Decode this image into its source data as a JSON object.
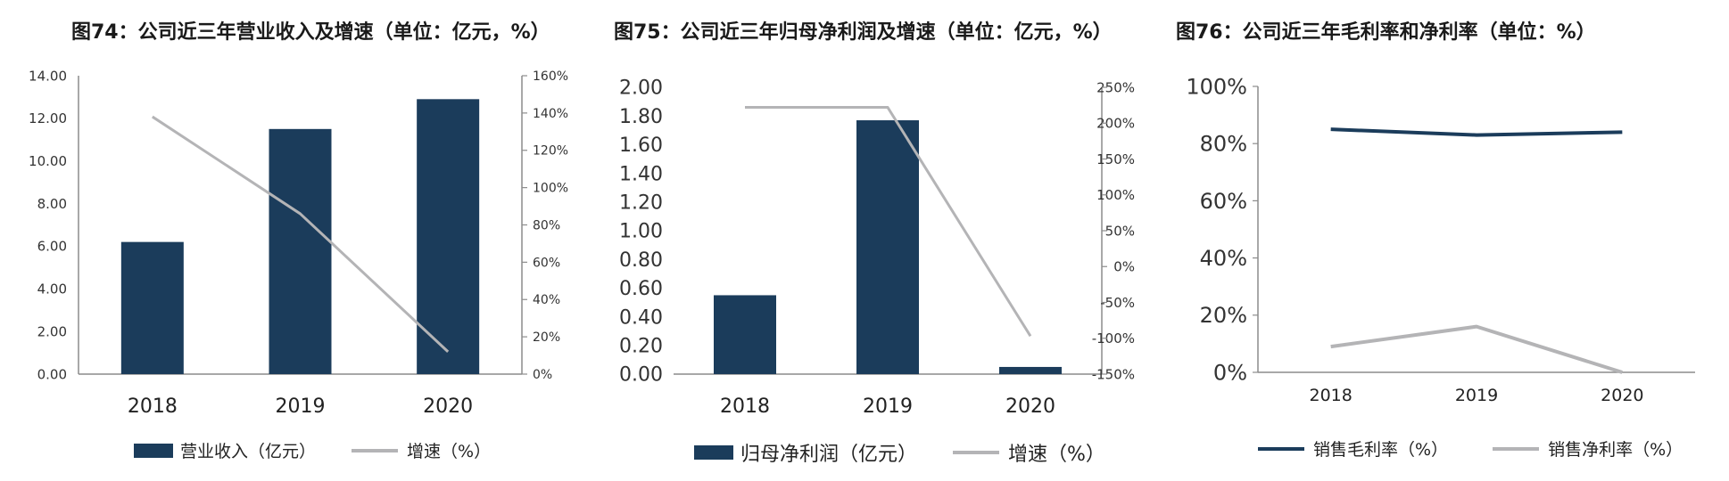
{
  "colors": {
    "bar": "#1b3c5b",
    "growth_line": "#b4b4b6",
    "gross_margin_line": "#1b3c5b",
    "net_margin_line": "#b4b4b6",
    "axis": "#8c8c8c"
  },
  "panels": [
    {
      "title": "图74：公司近三年营业收入及增速（单位：亿元，%）",
      "legend": {
        "bar": "营业收入（亿元）",
        "line": "增速（%）"
      }
    },
    {
      "title": "图75：公司近三年归母净利润及增速（单位：亿元，%）",
      "legend": {
        "bar": "归母净利润（亿元）",
        "line": "增速（%）"
      }
    },
    {
      "title": "图76：公司近三年毛利率和净利率（单位：%）",
      "legend": {
        "line1": "销售毛利率（%）",
        "line2": "销售净利率（%）"
      }
    }
  ],
  "chart_data": [
    {
      "type": "bar",
      "title": "图74：公司近三年营业收入及增速（单位：亿元，%）",
      "categories": [
        "2018",
        "2019",
        "2020"
      ],
      "series": [
        {
          "name": "营业收入（亿元）",
          "type": "bar",
          "axis": "left",
          "values": [
            6.2,
            11.5,
            12.9
          ]
        },
        {
          "name": "增速（%）",
          "type": "line",
          "axis": "right",
          "values": [
            138,
            86,
            12
          ]
        }
      ],
      "y_left": {
        "range": [
          0,
          14
        ],
        "ticks": [
          "0.00",
          "2.00",
          "4.00",
          "6.00",
          "8.00",
          "10.00",
          "12.00",
          "14.00"
        ]
      },
      "y_right": {
        "range": [
          0,
          160
        ],
        "ticks": [
          "0%",
          "20%",
          "40%",
          "60%",
          "80%",
          "100%",
          "120%",
          "140%",
          "160%"
        ]
      },
      "grid": false,
      "legend_position": "bottom"
    },
    {
      "type": "bar",
      "title": "图75：公司近三年归母净利润及增速（单位：亿元，%）",
      "categories": [
        "2018",
        "2019",
        "2020"
      ],
      "series": [
        {
          "name": "归母净利润（亿元）",
          "type": "bar",
          "axis": "left",
          "values": [
            0.55,
            1.77,
            0.05
          ]
        },
        {
          "name": "增速（%）",
          "type": "line",
          "axis": "right",
          "values": [
            222,
            222,
            -97
          ]
        }
      ],
      "y_left": {
        "range": [
          0,
          2
        ],
        "ticks": [
          "0.00",
          "0.20",
          "0.40",
          "0.60",
          "0.80",
          "1.00",
          "1.20",
          "1.40",
          "1.60",
          "1.80",
          "2.00"
        ]
      },
      "y_right": {
        "range": [
          -150,
          250
        ],
        "ticks": [
          "-150%",
          "-100%",
          "-50%",
          "0%",
          "50%",
          "100%",
          "150%",
          "200%",
          "250%"
        ]
      },
      "grid": false,
      "legend_position": "bottom"
    },
    {
      "type": "line",
      "title": "图76：公司近三年毛利率和净利率（单位：%）",
      "categories": [
        "2018",
        "2019",
        "2020"
      ],
      "series": [
        {
          "name": "销售毛利率（%）",
          "values": [
            85,
            83,
            84
          ]
        },
        {
          "name": "销售净利率（%）",
          "values": [
            9,
            16,
            0
          ]
        }
      ],
      "y_left": {
        "range": [
          0,
          100
        ],
        "ticks": [
          "0%",
          "20%",
          "40%",
          "60%",
          "80%",
          "100%"
        ]
      },
      "grid": false,
      "legend_position": "bottom"
    }
  ]
}
